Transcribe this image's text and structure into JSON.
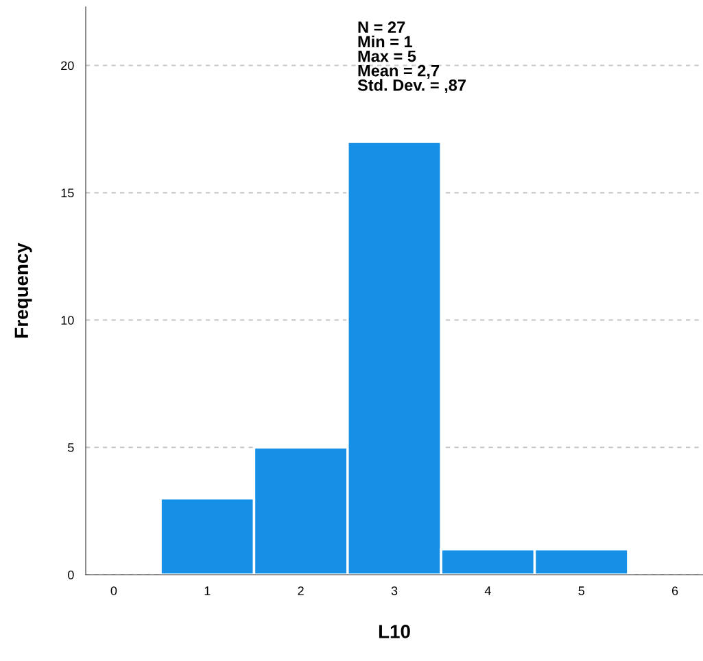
{
  "chart_data": {
    "type": "histogram",
    "xlabel": "L10",
    "ylabel": "Frequency",
    "bins": [
      0.5,
      1.5,
      2.5,
      3.5,
      4.5,
      5.5
    ],
    "values": [
      3,
      5,
      17,
      1,
      1
    ],
    "color": "#168fe6",
    "xlim": [
      -0.3,
      6.3
    ],
    "xticks": [
      0,
      1,
      2,
      3,
      4,
      5,
      6
    ],
    "ylim": [
      0,
      22.3
    ],
    "yticks": [
      0,
      5,
      10,
      15,
      20
    ],
    "grid": "y",
    "line_style": "dashed",
    "annotations": [
      "N = 27\nMin = 1\nMax = 5\nMean = 2,7\nStd. Dev. = ,87"
    ]
  }
}
